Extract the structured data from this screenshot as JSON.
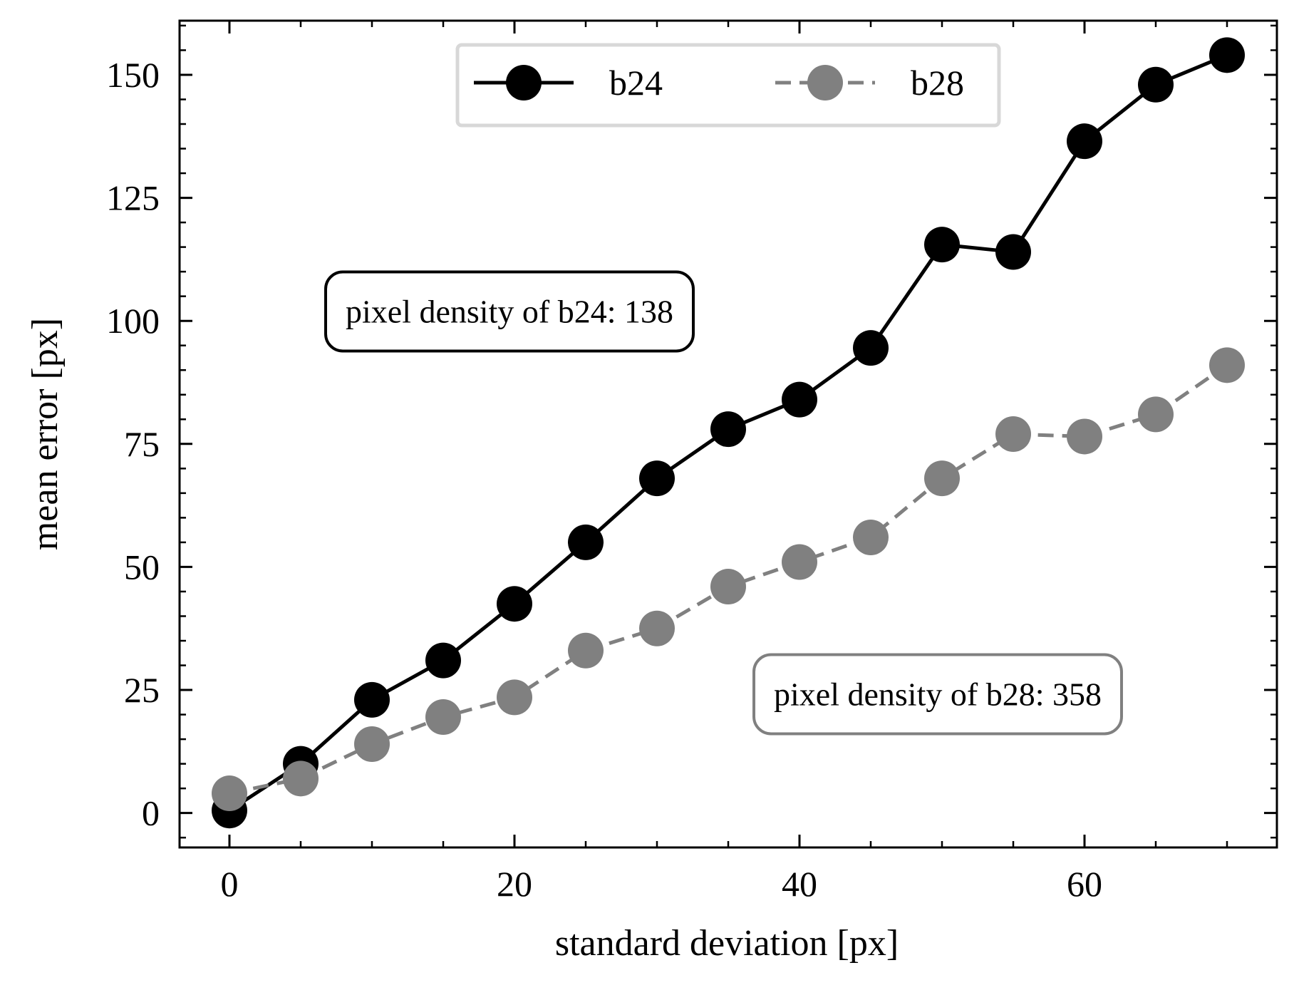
{
  "chart_data": {
    "type": "line",
    "xlabel": "standard deviation [px]",
    "ylabel": "mean error [px]",
    "xlim": [
      -3.5,
      73.5
    ],
    "ylim": [
      -7,
      161
    ],
    "xticks": [
      0,
      20,
      40,
      60
    ],
    "xtick_labels": [
      "0",
      "20",
      "40",
      "60"
    ],
    "yticks": [
      0,
      25,
      50,
      75,
      100,
      125,
      150
    ],
    "ytick_labels": [
      "0",
      "25",
      "50",
      "75",
      "100",
      "125",
      "150"
    ],
    "grid": false,
    "legend_position": "top-center",
    "x": [
      0,
      5,
      10,
      15,
      20,
      25,
      30,
      35,
      40,
      45,
      50,
      55,
      60,
      65,
      70
    ],
    "series": [
      {
        "name": "b24",
        "color": "#000000",
        "style": "solid",
        "values": [
          0.5,
          10,
          23,
          31,
          42.5,
          55,
          68,
          78,
          84,
          94.5,
          115.5,
          114,
          136.5,
          148,
          154
        ]
      },
      {
        "name": "b28",
        "color": "#808080",
        "style": "dashed",
        "values": [
          4,
          7,
          14,
          19.5,
          23.5,
          33,
          37.5,
          46,
          51,
          56,
          68,
          77,
          76.5,
          81,
          91
        ]
      }
    ],
    "annotations": [
      {
        "text": "pixel density of b24: 138",
        "color": "#000000"
      },
      {
        "text": "pixel density of b28: 358",
        "color": "#808080"
      }
    ]
  }
}
